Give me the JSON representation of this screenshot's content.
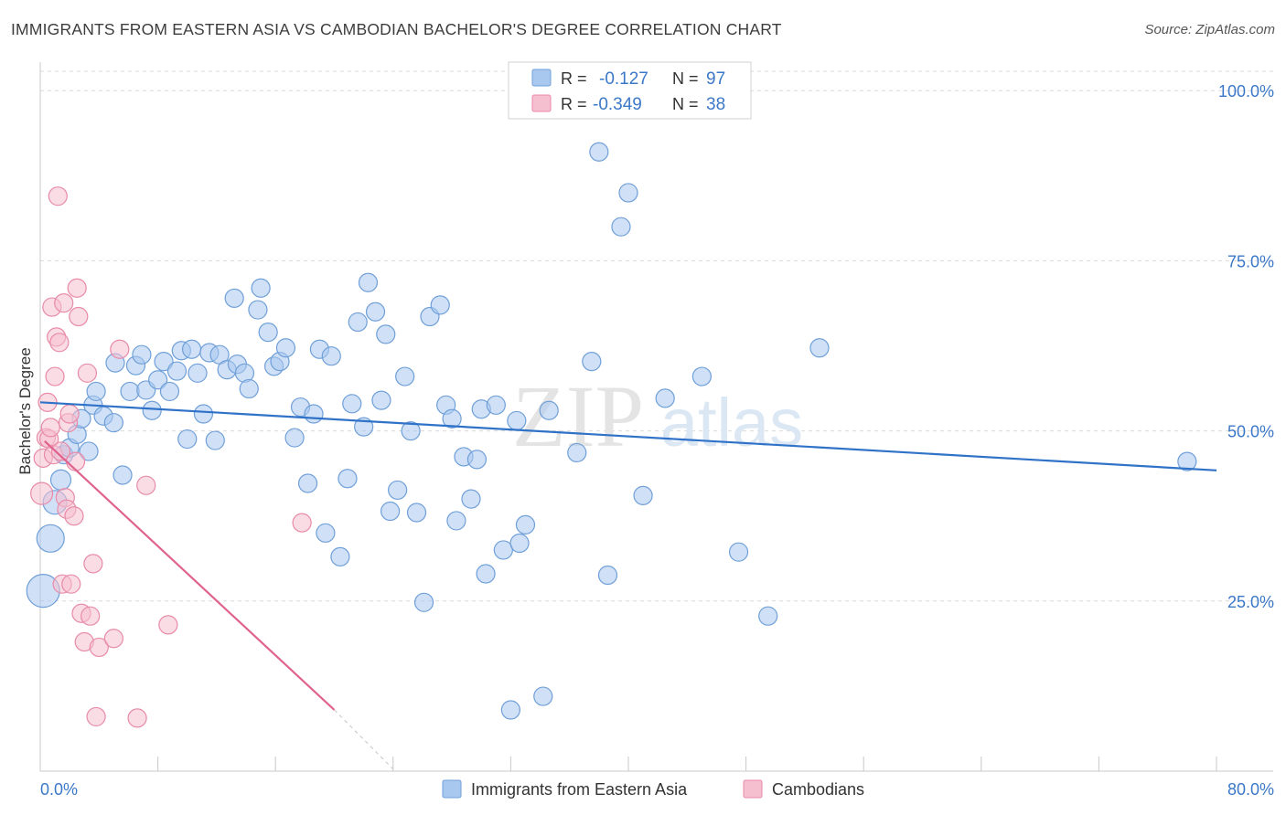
{
  "title": "IMMIGRANTS FROM EASTERN ASIA VS CAMBODIAN BACHELOR'S DEGREE CORRELATION CHART",
  "source": "Source: ZipAtlas.com",
  "watermark": {
    "zip": "ZIP",
    "atlas": "atlas"
  },
  "colors": {
    "blue_fill": "#a9c8f0",
    "blue_stroke": "#6f9fd8",
    "blue_line": "#2f72c8",
    "pink_fill": "#f6bfd0",
    "pink_stroke": "#e88aa8",
    "pink_line": "#e0628e",
    "axis_text": "#3b78c8",
    "grid": "#d9d9d9"
  },
  "legend_top": {
    "rows": [
      {
        "r_label": "R =",
        "r_value": "-0.127",
        "n_label": "N =",
        "n_value": "97"
      },
      {
        "r_label": "R =",
        "r_value": "-0.349",
        "n_label": "N =",
        "n_value": "38"
      }
    ]
  },
  "legend_bottom": {
    "items": [
      "Immigrants from Eastern Asia",
      "Cambodians"
    ]
  },
  "chart_data": {
    "type": "scatter",
    "xlabel": "",
    "ylabel": "Bachelor's Degree",
    "xlim": [
      0,
      80
    ],
    "ylim": [
      0,
      105
    ],
    "x_tick_labels": [
      "0.0%",
      "80.0%"
    ],
    "y_ticks": [
      25,
      50,
      75,
      100
    ],
    "y_tick_labels": [
      "25.0%",
      "50.0%",
      "75.0%",
      "100.0%"
    ],
    "grid": "horizontal dashed",
    "series": [
      {
        "name": "Immigrants from Eastern Asia",
        "color": "blue",
        "trend": {
          "x": [
            0,
            80
          ],
          "y": [
            54.2,
            44.2
          ]
        },
        "points": [
          [
            0.2,
            26.5,
            18
          ],
          [
            0.7,
            34.2,
            15
          ],
          [
            1.0,
            39.5,
            13
          ],
          [
            1.4,
            42.8,
            11
          ],
          [
            1.6,
            46.5,
            10
          ],
          [
            2.0,
            47.5,
            10
          ],
          [
            2.5,
            49.5,
            10
          ],
          [
            2.8,
            51.8,
            10
          ],
          [
            3.3,
            47.0,
            10
          ],
          [
            3.6,
            53.8,
            10
          ],
          [
            3.8,
            55.8,
            10
          ],
          [
            4.3,
            52.2,
            10
          ],
          [
            5.0,
            51.2,
            10
          ],
          [
            5.1,
            60.0,
            10
          ],
          [
            5.6,
            43.5,
            10
          ],
          [
            6.1,
            55.8,
            10
          ],
          [
            6.5,
            59.6,
            10
          ],
          [
            6.9,
            61.2,
            10
          ],
          [
            7.2,
            56.0,
            10
          ],
          [
            7.6,
            53.0,
            10
          ],
          [
            8.0,
            57.5,
            10
          ],
          [
            8.4,
            60.2,
            10
          ],
          [
            8.8,
            55.8,
            10
          ],
          [
            9.3,
            58.8,
            10
          ],
          [
            9.6,
            61.8,
            10
          ],
          [
            10.0,
            48.8,
            10
          ],
          [
            10.3,
            62.0,
            10
          ],
          [
            10.7,
            58.5,
            10
          ],
          [
            11.1,
            52.5,
            10
          ],
          [
            11.5,
            61.5,
            10
          ],
          [
            11.9,
            48.6,
            10
          ],
          [
            12.2,
            61.2,
            10
          ],
          [
            12.7,
            59.0,
            10
          ],
          [
            13.2,
            69.5,
            10
          ],
          [
            13.4,
            59.8,
            10
          ],
          [
            13.9,
            58.5,
            10
          ],
          [
            14.2,
            56.2,
            10
          ],
          [
            14.8,
            67.8,
            10
          ],
          [
            15.0,
            71.0,
            10
          ],
          [
            15.5,
            64.5,
            10
          ],
          [
            15.9,
            59.5,
            10
          ],
          [
            16.3,
            60.2,
            10
          ],
          [
            16.7,
            62.2,
            10
          ],
          [
            17.3,
            49.0,
            10
          ],
          [
            17.7,
            53.5,
            10
          ],
          [
            18.2,
            42.3,
            10
          ],
          [
            18.6,
            52.5,
            10
          ],
          [
            19.0,
            62.0,
            10
          ],
          [
            19.4,
            35.0,
            10
          ],
          [
            19.8,
            61.0,
            10
          ],
          [
            20.4,
            31.5,
            10
          ],
          [
            20.9,
            43.0,
            10
          ],
          [
            21.2,
            54.0,
            10
          ],
          [
            21.6,
            66.0,
            10
          ],
          [
            22.0,
            50.6,
            10
          ],
          [
            22.3,
            71.8,
            10
          ],
          [
            22.8,
            67.5,
            10
          ],
          [
            23.2,
            54.5,
            10
          ],
          [
            23.5,
            64.2,
            10
          ],
          [
            23.8,
            38.2,
            10
          ],
          [
            24.3,
            41.3,
            10
          ],
          [
            24.8,
            58.0,
            10
          ],
          [
            25.2,
            50.0,
            10
          ],
          [
            25.6,
            38.0,
            10
          ],
          [
            26.1,
            24.8,
            10
          ],
          [
            26.5,
            66.8,
            10
          ],
          [
            27.2,
            68.5,
            10
          ],
          [
            27.6,
            53.8,
            10
          ],
          [
            28.0,
            51.8,
            10
          ],
          [
            28.3,
            36.8,
            10
          ],
          [
            28.8,
            46.2,
            10
          ],
          [
            29.3,
            40.0,
            10
          ],
          [
            29.7,
            45.8,
            10
          ],
          [
            30.0,
            53.2,
            10
          ],
          [
            30.3,
            29.0,
            10
          ],
          [
            31.0,
            53.8,
            10
          ],
          [
            31.5,
            32.5,
            10
          ],
          [
            32.0,
            9.0,
            10
          ],
          [
            32.4,
            51.5,
            10
          ],
          [
            32.6,
            33.5,
            10
          ],
          [
            33.0,
            36.2,
            10
          ],
          [
            34.2,
            11.0,
            10
          ],
          [
            34.6,
            53.0,
            10
          ],
          [
            36.5,
            46.8,
            10
          ],
          [
            37.5,
            60.2,
            10
          ],
          [
            38.0,
            91.0,
            10
          ],
          [
            38.6,
            28.8,
            10
          ],
          [
            39.5,
            80.0,
            10
          ],
          [
            40.0,
            85.0,
            10
          ],
          [
            41.0,
            40.5,
            10
          ],
          [
            42.5,
            54.8,
            10
          ],
          [
            45.0,
            58.0,
            10
          ],
          [
            47.5,
            32.2,
            10
          ],
          [
            49.5,
            22.8,
            10
          ],
          [
            53.0,
            62.2,
            10
          ],
          [
            78.0,
            45.5,
            10
          ]
        ]
      },
      {
        "name": "Cambodians",
        "color": "pink",
        "trend": {
          "x": [
            0.3,
            20.0
          ],
          "y": [
            48.5,
            9.0
          ]
        },
        "trend_dashed": {
          "x": [
            20.0,
            24.0
          ],
          "y": [
            9.0,
            0.3
          ]
        },
        "points": [
          [
            0.1,
            40.8,
            12
          ],
          [
            0.2,
            46.0,
            10
          ],
          [
            0.4,
            49.0,
            10
          ],
          [
            0.5,
            54.2,
            10
          ],
          [
            0.6,
            48.8,
            10
          ],
          [
            0.7,
            50.5,
            10
          ],
          [
            0.8,
            68.2,
            10
          ],
          [
            0.9,
            46.5,
            10
          ],
          [
            1.0,
            58.0,
            10
          ],
          [
            1.1,
            63.8,
            10
          ],
          [
            1.2,
            84.5,
            10
          ],
          [
            1.3,
            63.0,
            10
          ],
          [
            1.4,
            47.0,
            10
          ],
          [
            1.5,
            27.5,
            10
          ],
          [
            1.6,
            68.8,
            10
          ],
          [
            1.7,
            40.2,
            10
          ],
          [
            1.8,
            38.5,
            10
          ],
          [
            1.9,
            51.2,
            10
          ],
          [
            2.0,
            52.5,
            10
          ],
          [
            2.1,
            27.5,
            10
          ],
          [
            2.3,
            37.5,
            10
          ],
          [
            2.4,
            45.5,
            10
          ],
          [
            2.5,
            71.0,
            10
          ],
          [
            2.6,
            66.8,
            10
          ],
          [
            2.8,
            23.2,
            10
          ],
          [
            3.0,
            19.0,
            10
          ],
          [
            3.2,
            58.5,
            10
          ],
          [
            3.4,
            22.8,
            10
          ],
          [
            3.6,
            30.5,
            10
          ],
          [
            3.8,
            8.0,
            10
          ],
          [
            4.0,
            18.2,
            10
          ],
          [
            5.0,
            19.5,
            10
          ],
          [
            5.4,
            62.0,
            10
          ],
          [
            6.6,
            7.8,
            10
          ],
          [
            7.2,
            42.0,
            10
          ],
          [
            8.7,
            21.5,
            10
          ],
          [
            17.8,
            36.5,
            10
          ]
        ]
      }
    ]
  }
}
